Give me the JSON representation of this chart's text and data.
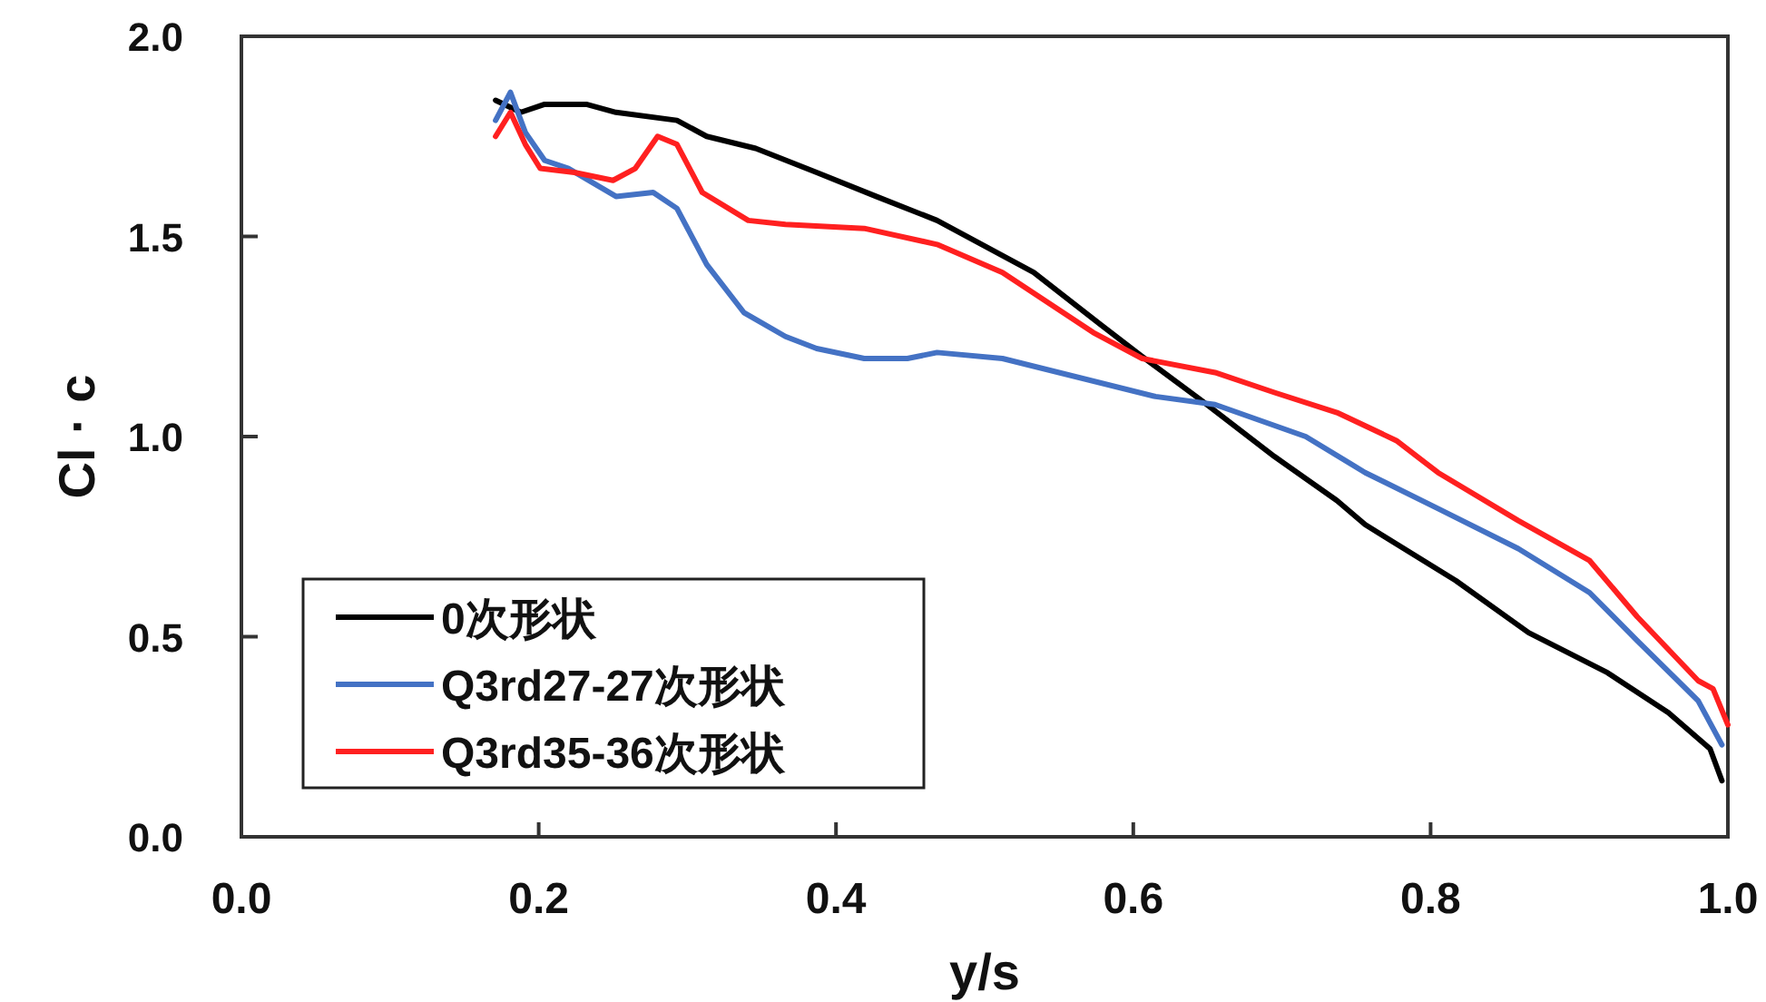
{
  "chart_data": {
    "type": "line",
    "xlabel": "y/s",
    "ylabel": "Cl · c",
    "xlim": [
      0,
      1
    ],
    "xticks": [
      {
        "value": 0,
        "label": "0.0"
      },
      0.2,
      0.4,
      0.6,
      0.8,
      {
        "value": 1,
        "label": "1.0"
      }
    ],
    "ylim": [
      0,
      2
    ],
    "yticks": [
      {
        "value": 0,
        "label": "0.0"
      },
      0.5,
      {
        "value": 1,
        "label": "1.0"
      },
      1.5,
      {
        "value": 2,
        "label": "2.0"
      }
    ],
    "grid": false,
    "legend": "bottom left",
    "series": [
      {
        "name": "0次形状",
        "color": "#000000",
        "x": [
          0.171,
          0.188,
          0.204,
          0.232,
          0.252,
          0.293,
          0.313,
          0.346,
          0.387,
          0.427,
          0.468,
          0.533,
          0.578,
          0.606,
          0.646,
          0.695,
          0.737,
          0.756,
          0.817,
          0.866,
          0.919,
          0.96,
          0.988,
          0.996
        ],
        "values": [
          1.84,
          1.81,
          1.83,
          1.83,
          1.81,
          1.79,
          1.75,
          1.72,
          1.66,
          1.6,
          1.54,
          1.41,
          1.28,
          1.2,
          1.09,
          0.95,
          0.84,
          0.78,
          0.64,
          0.51,
          0.41,
          0.31,
          0.22,
          0.14
        ]
      },
      {
        "name": "Q3rd27-27次形状",
        "color": "#4472c4",
        "x": [
          0.171,
          0.181,
          0.191,
          0.204,
          0.22,
          0.252,
          0.277,
          0.293,
          0.313,
          0.338,
          0.366,
          0.387,
          0.419,
          0.448,
          0.468,
          0.512,
          0.615,
          0.655,
          0.716,
          0.756,
          0.805,
          0.859,
          0.907,
          0.939,
          0.98,
          0.996
        ],
        "values": [
          1.79,
          1.86,
          1.76,
          1.69,
          1.67,
          1.6,
          1.61,
          1.57,
          1.43,
          1.31,
          1.25,
          1.22,
          1.195,
          1.195,
          1.21,
          1.195,
          1.1,
          1.08,
          1.0,
          0.91,
          0.82,
          0.72,
          0.61,
          0.49,
          0.34,
          0.23
        ]
      },
      {
        "name": "Q3rd35-36次形状",
        "color": "#ff2020",
        "x": [
          0.171,
          0.181,
          0.191,
          0.201,
          0.224,
          0.25,
          0.265,
          0.28,
          0.293,
          0.31,
          0.341,
          0.366,
          0.419,
          0.468,
          0.512,
          0.573,
          0.606,
          0.655,
          0.695,
          0.737,
          0.777,
          0.805,
          0.859,
          0.907,
          0.939,
          0.98,
          0.99,
          1.0
        ],
        "values": [
          1.75,
          1.81,
          1.73,
          1.67,
          1.66,
          1.64,
          1.67,
          1.75,
          1.73,
          1.61,
          1.54,
          1.53,
          1.52,
          1.48,
          1.41,
          1.26,
          1.195,
          1.16,
          1.11,
          1.06,
          0.99,
          0.91,
          0.79,
          0.69,
          0.55,
          0.39,
          0.37,
          0.28
        ]
      }
    ]
  }
}
